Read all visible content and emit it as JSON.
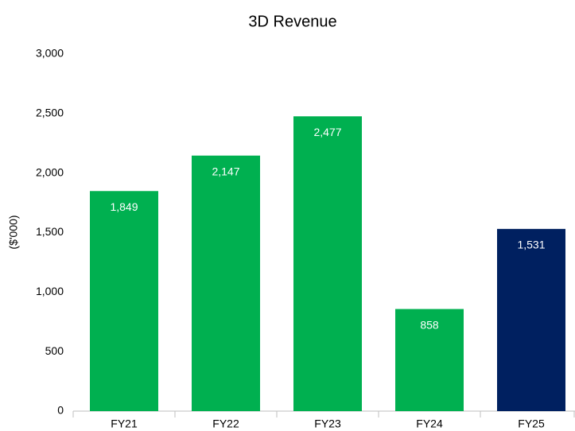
{
  "chart_data": {
    "type": "bar",
    "title": "3D Revenue",
    "y_label": "($'000)",
    "categories": [
      "FY21",
      "FY22",
      "FY23",
      "FY24",
      "FY25"
    ],
    "values": [
      1849,
      2147,
      2477,
      858,
      1531
    ],
    "value_labels": [
      "1,849",
      "2,147",
      "2,477",
      "858",
      "1,531"
    ],
    "colors": [
      "#00b050",
      "#00b050",
      "#00b050",
      "#00b050",
      "#002060"
    ],
    "ylim": [
      0,
      3000
    ],
    "yticks": [
      0,
      500,
      {
        "value": 1000,
        "label": "1,000"
      },
      {
        "value": 1500,
        "label": "1,500"
      },
      {
        "value": 2000,
        "label": "2,000"
      },
      {
        "value": 2500,
        "label": "2,500"
      },
      {
        "value": 3000,
        "label": "3,000"
      }
    ],
    "grid": false
  }
}
